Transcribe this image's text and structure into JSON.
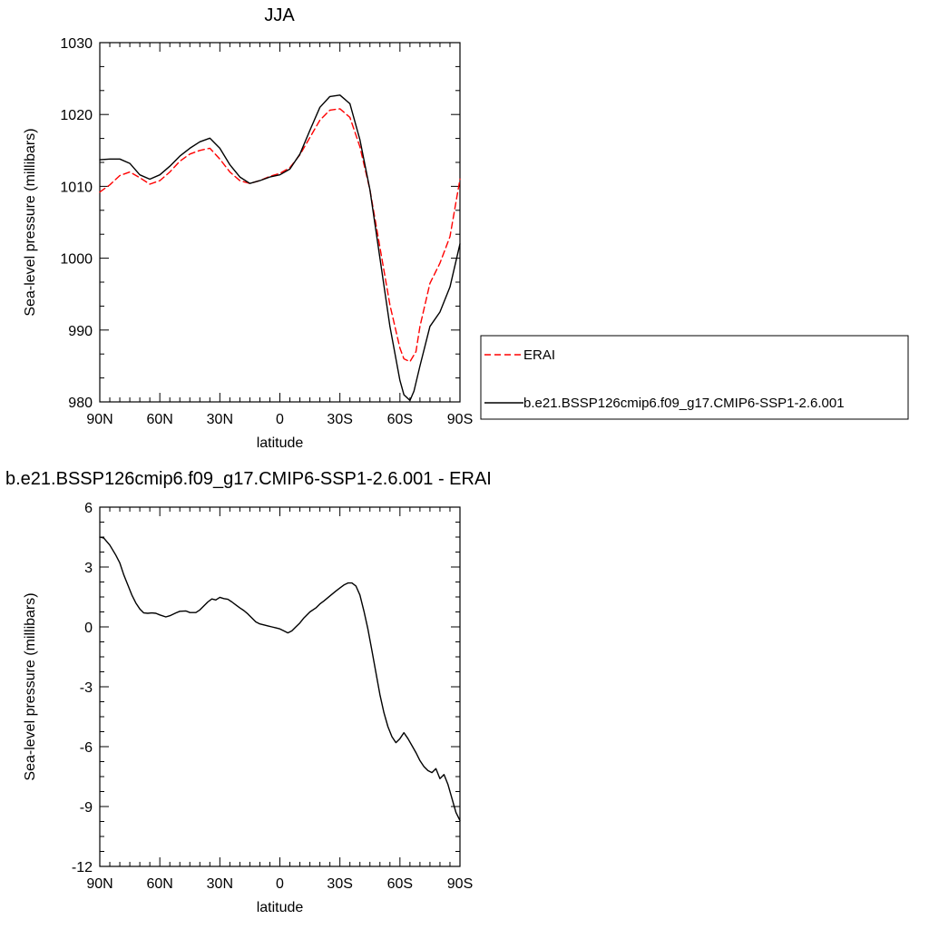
{
  "chart_data": [
    {
      "type": "line",
      "title": "JJA",
      "xlabel": "latitude",
      "ylabel": "Sea-level pressure (millibars)",
      "xlim": [
        -90,
        90
      ],
      "ylim": [
        980,
        1030
      ],
      "xticks": [
        -90,
        -60,
        -30,
        0,
        30,
        60,
        90
      ],
      "xticklabels": [
        "90N",
        "60N",
        "30N",
        "0",
        "30S",
        "60S",
        "90S"
      ],
      "yticks": [
        980,
        990,
        1000,
        1010,
        1020,
        1030
      ],
      "yticklabels": [
        "980",
        "990",
        "1000",
        "1010",
        "1020",
        "1030"
      ],
      "grid": false,
      "legend": "right",
      "series": [
        {
          "name": "ERAI",
          "color": "#ff0000",
          "style": "dashed",
          "x": [
            -90,
            -85,
            -80,
            -75,
            -70,
            -65,
            -60,
            -55,
            -50,
            -45,
            -40,
            -35,
            -30,
            -25,
            -20,
            -15,
            -10,
            -5,
            0,
            5,
            10,
            15,
            20,
            25,
            30,
            35,
            40,
            45,
            50,
            55,
            60,
            62,
            65,
            68,
            70,
            75,
            80,
            85,
            90
          ],
          "y": [
            1009.2,
            1010.2,
            1011.5,
            1012.0,
            1011.2,
            1010.3,
            1010.8,
            1012.0,
            1013.5,
            1014.5,
            1015.0,
            1015.3,
            1013.8,
            1012.0,
            1010.8,
            1010.4,
            1010.8,
            1011.4,
            1011.8,
            1012.6,
            1014.4,
            1016.8,
            1019.2,
            1020.6,
            1020.8,
            1019.6,
            1015.5,
            1009.5,
            1001.5,
            993.5,
            987.5,
            986.0,
            985.6,
            987.0,
            990.5,
            996.5,
            999.3,
            1003.0,
            1011.0
          ]
        },
        {
          "name": "b.e21.BSSP126cmip6.f09_g17.CMIP6-SSP1-2.6.001",
          "color": "#000000",
          "style": "solid",
          "x": [
            -90,
            -85,
            -80,
            -75,
            -70,
            -65,
            -60,
            -55,
            -50,
            -45,
            -40,
            -35,
            -30,
            -25,
            -20,
            -15,
            -10,
            -5,
            0,
            5,
            10,
            15,
            20,
            25,
            30,
            35,
            40,
            45,
            50,
            55,
            60,
            62,
            65,
            67,
            70,
            75,
            80,
            85,
            90
          ],
          "y": [
            1013.7,
            1013.8,
            1013.8,
            1013.2,
            1011.6,
            1011.0,
            1011.6,
            1012.8,
            1014.2,
            1015.3,
            1016.2,
            1016.7,
            1015.3,
            1013.0,
            1011.3,
            1010.4,
            1010.8,
            1011.3,
            1011.6,
            1012.4,
            1014.5,
            1017.8,
            1021.0,
            1022.5,
            1022.7,
            1021.5,
            1016.5,
            1009.5,
            1000.0,
            990.5,
            983.0,
            981.0,
            980.2,
            981.5,
            985.0,
            990.5,
            992.5,
            996.0,
            1002.0
          ]
        }
      ]
    },
    {
      "type": "line",
      "title": "b.e21.BSSP126cmip6.f09_g17.CMIP6-SSP1-2.6.001 - ERAI",
      "xlabel": "latitude",
      "ylabel": "Sea-level pressure (millibars)",
      "xlim": [
        -90,
        90
      ],
      "ylim": [
        -12,
        6
      ],
      "xticks": [
        -90,
        -60,
        -30,
        0,
        30,
        60,
        90
      ],
      "xticklabels": [
        "90N",
        "60N",
        "30N",
        "0",
        "30S",
        "60S",
        "90S"
      ],
      "yticks": [
        -12,
        -9,
        -6,
        -3,
        0,
        3,
        6
      ],
      "yticklabels": [
        "-12",
        "-9",
        "-6",
        "-3",
        "0",
        "3",
        "6"
      ],
      "grid": false,
      "series": [
        {
          "color": "#000000",
          "style": "solid",
          "x": [
            -90,
            -88,
            -85,
            -82,
            -80,
            -78,
            -76,
            -74,
            -72,
            -70,
            -68,
            -66,
            -64,
            -62,
            -60,
            -57,
            -55,
            -52,
            -50,
            -47,
            -45,
            -42,
            -40,
            -38,
            -36,
            -34,
            -32,
            -30,
            -28,
            -26,
            -24,
            -22,
            -20,
            -18,
            -16,
            -14,
            -12,
            -10,
            -8,
            -6,
            -4,
            -2,
            0,
            2,
            4,
            6,
            8,
            10,
            12,
            15,
            18,
            20,
            22,
            25,
            28,
            30,
            32,
            34,
            36,
            38,
            40,
            42,
            44,
            46,
            48,
            50,
            52,
            54,
            56,
            58,
            60,
            62,
            64,
            66,
            68,
            70,
            72,
            74,
            76,
            78,
            80,
            82,
            84,
            86,
            88,
            90
          ],
          "y": [
            4.5,
            4.45,
            4.1,
            3.6,
            3.2,
            2.6,
            2.1,
            1.6,
            1.2,
            0.9,
            0.7,
            0.68,
            0.7,
            0.68,
            0.6,
            0.5,
            0.56,
            0.7,
            0.78,
            0.8,
            0.72,
            0.72,
            0.85,
            1.05,
            1.25,
            1.4,
            1.35,
            1.48,
            1.42,
            1.38,
            1.25,
            1.1,
            0.95,
            0.82,
            0.65,
            0.45,
            0.25,
            0.15,
            0.1,
            0.05,
            0.0,
            -0.05,
            -0.1,
            -0.2,
            -0.3,
            -0.2,
            0.0,
            0.2,
            0.45,
            0.75,
            0.95,
            1.15,
            1.3,
            1.55,
            1.8,
            1.95,
            2.1,
            2.2,
            2.2,
            2.05,
            1.6,
            0.8,
            -0.1,
            -1.2,
            -2.3,
            -3.4,
            -4.3,
            -5.0,
            -5.5,
            -5.8,
            -5.6,
            -5.3,
            -5.6,
            -5.95,
            -6.3,
            -6.7,
            -7.0,
            -7.2,
            -7.3,
            -7.1,
            -7.6,
            -7.4,
            -7.9,
            -8.6,
            -9.3,
            -9.7
          ]
        }
      ]
    }
  ]
}
